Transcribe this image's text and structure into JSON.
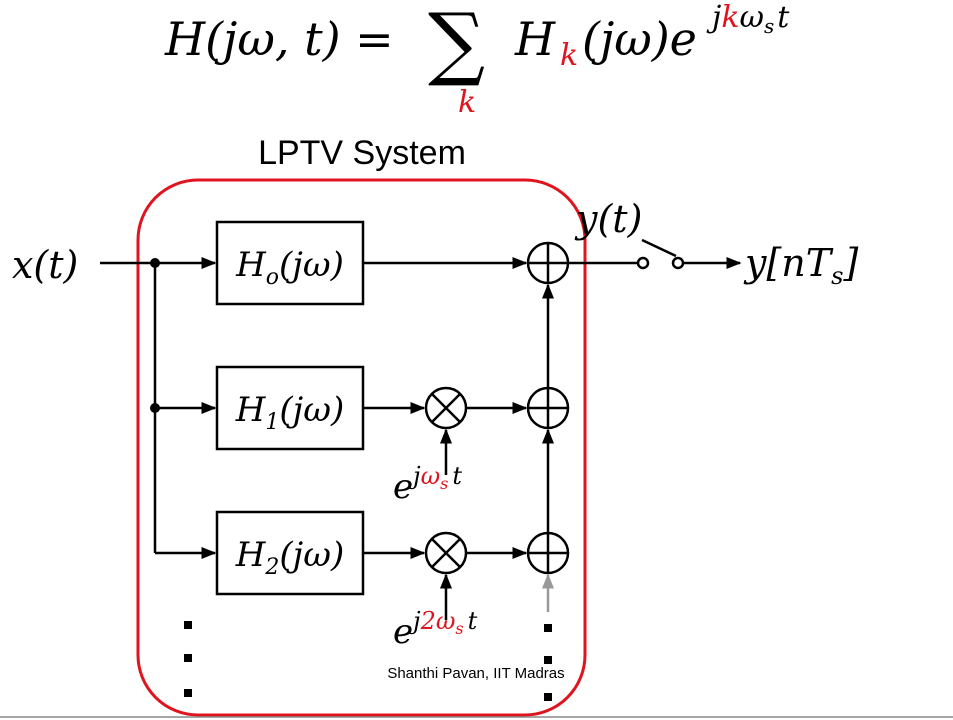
{
  "equation": {
    "left": "H(jω, t) =",
    "sum_symbol": "∑",
    "sum_index": "k",
    "term": "H",
    "term_index": "k",
    "term_rest": "(jω)e",
    "exponent": {
      "j": "j",
      "k": "k",
      "omega": "ω",
      "sub": "s",
      "t": "t"
    }
  },
  "title": "LPTV System",
  "input": "x(t)",
  "output_continuous": "y(t)",
  "output_sampled": {
    "main": "y[nT",
    "sub": "s",
    "close": "]"
  },
  "blocks": [
    {
      "name": "H",
      "index": "o",
      "arg": "(jω)"
    },
    {
      "name": "H",
      "index": "1",
      "arg": "(jω)"
    },
    {
      "name": "H",
      "index": "2",
      "arg": "(jω)"
    }
  ],
  "modulators": [
    {
      "base": "e",
      "j": "j",
      "factor": "ω",
      "sub": "s",
      "t": "t"
    },
    {
      "base": "e",
      "j": "j",
      "factor": "2ω",
      "sub": "s",
      "t": "t"
    }
  ],
  "credit": "Shanthi Pavan, IIT Madras"
}
